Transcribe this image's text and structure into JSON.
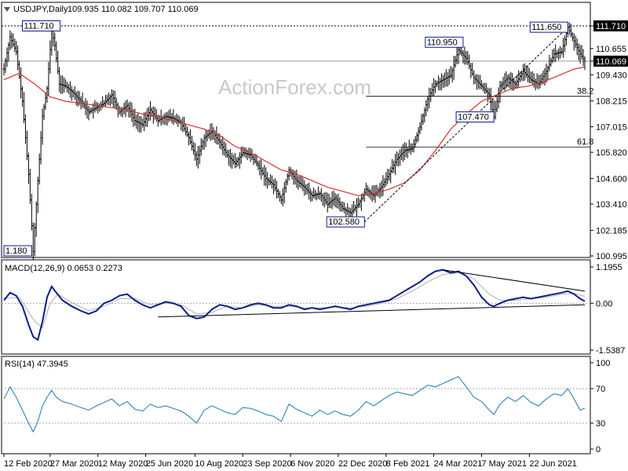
{
  "header": {
    "symbol": "USDJPY,Daily",
    "ohlc": "109.935 110.082 109.707 110.069"
  },
  "watermark": "ActionForex.com",
  "colors": {
    "price_bars": "#000000",
    "moving_average": "#d32f2f",
    "macd_line": "#0b1e8a",
    "macd_signal": "#b0b0b0",
    "rsi_line": "#1f77b4",
    "annotation_box": "#0b1e8a"
  },
  "chart_data": [
    {
      "type": "ohlc",
      "panel": "price",
      "price_axis_labels": [
        "111.710",
        "110.655",
        "110.069",
        "109.430",
        "108.215",
        "107.015",
        "105.820",
        "104.600",
        "103.410",
        "102.185",
        "100.995"
      ],
      "ylim": [
        100.995,
        111.71
      ],
      "current_price": "110.069",
      "x_labels": [
        "12 Feb 2020",
        "27 Mar 2020",
        "12 May 2020",
        "25 Jun 2020",
        "10 Aug 2020",
        "23 Sep 2020",
        "6 Nov 2020",
        "22 Dec 2020",
        "8 Feb 2021",
        "24 Mar 2021",
        "7 May 2021",
        "22 Jun 2021"
      ],
      "annotations": [
        {
          "label": "111.710"
        },
        {
          "label": "110.950"
        },
        {
          "label": "111.650"
        },
        {
          "label": "107.470"
        },
        {
          "label": "102.580"
        },
        {
          "label": "1.180"
        }
      ],
      "fibonacci": [
        {
          "label": "38.2",
          "value": 108.43
        },
        {
          "label": "61.8",
          "value": 106.07
        }
      ],
      "resistance_level": 111.71,
      "close_path": [
        [
          0,
          109.7
        ],
        [
          4,
          111.2
        ],
        [
          8,
          110.5
        ],
        [
          12,
          108.2
        ],
        [
          16,
          104.8
        ],
        [
          19,
          101.2
        ],
        [
          22,
          104.5
        ],
        [
          25,
          107.5
        ],
        [
          28,
          108.8
        ],
        [
          31,
          111.5
        ],
        [
          33,
          110.8
        ],
        [
          36,
          109.0
        ],
        [
          40,
          108.9
        ],
        [
          45,
          108.6
        ],
        [
          50,
          108.2
        ],
        [
          55,
          107.7
        ],
        [
          60,
          107.9
        ],
        [
          65,
          108.1
        ],
        [
          70,
          108.5
        ],
        [
          75,
          107.7
        ],
        [
          80,
          108.0
        ],
        [
          85,
          107.3
        ],
        [
          90,
          107.1
        ],
        [
          95,
          107.8
        ],
        [
          100,
          107.3
        ],
        [
          105,
          107.5
        ],
        [
          110,
          107.4
        ],
        [
          115,
          107.2
        ],
        [
          120,
          106.5
        ],
        [
          125,
          105.5
        ],
        [
          130,
          106.5
        ],
        [
          135,
          106.8
        ],
        [
          140,
          106.3
        ],
        [
          145,
          105.7
        ],
        [
          150,
          105.3
        ],
        [
          155,
          105.8
        ],
        [
          160,
          105.7
        ],
        [
          165,
          105.2
        ],
        [
          170,
          104.6
        ],
        [
          175,
          104.3
        ],
        [
          180,
          103.6
        ],
        [
          185,
          105.0
        ],
        [
          190,
          104.5
        ],
        [
          195,
          104.2
        ],
        [
          200,
          103.8
        ],
        [
          205,
          103.9
        ],
        [
          210,
          103.4
        ],
        [
          215,
          103.7
        ],
        [
          220,
          103.2
        ],
        [
          225,
          103.0
        ],
        [
          230,
          103.4
        ],
        [
          235,
          104.1
        ],
        [
          240,
          103.8
        ],
        [
          245,
          104.2
        ],
        [
          250,
          104.8
        ],
        [
          255,
          105.5
        ],
        [
          260,
          105.9
        ],
        [
          265,
          106.0
        ],
        [
          270,
          107.0
        ],
        [
          275,
          108.3
        ],
        [
          280,
          109.0
        ],
        [
          285,
          109.2
        ],
        [
          290,
          109.4
        ],
        [
          295,
          110.6
        ],
        [
          300,
          110.2
        ],
        [
          305,
          109.3
        ],
        [
          310,
          108.9
        ],
        [
          315,
          108.5
        ],
        [
          318,
          107.47
        ],
        [
          322,
          108.9
        ],
        [
          327,
          109.3
        ],
        [
          332,
          109.0
        ],
        [
          337,
          109.6
        ],
        [
          342,
          109.2
        ],
        [
          347,
          109.0
        ],
        [
          352,
          109.6
        ],
        [
          357,
          110.4
        ],
        [
          362,
          110.5
        ],
        [
          366,
          111.65
        ],
        [
          370,
          111.0
        ],
        [
          374,
          110.4
        ],
        [
          377,
          110.069
        ]
      ],
      "moving_average_path": [
        [
          0,
          109.2
        ],
        [
          10,
          109.5
        ],
        [
          20,
          109.0
        ],
        [
          30,
          108.4
        ],
        [
          40,
          108.2
        ],
        [
          50,
          108.1
        ],
        [
          60,
          108.0
        ],
        [
          70,
          107.9
        ],
        [
          80,
          107.8
        ],
        [
          90,
          107.6
        ],
        [
          100,
          107.5
        ],
        [
          110,
          107.3
        ],
        [
          120,
          107.1
        ],
        [
          130,
          106.9
        ],
        [
          140,
          106.6
        ],
        [
          150,
          106.1
        ],
        [
          160,
          105.8
        ],
        [
          170,
          105.4
        ],
        [
          180,
          105.0
        ],
        [
          190,
          104.8
        ],
        [
          200,
          104.5
        ],
        [
          210,
          104.2
        ],
        [
          220,
          104.0
        ],
        [
          230,
          103.8
        ],
        [
          240,
          103.9
        ],
        [
          250,
          104.1
        ],
        [
          260,
          104.4
        ],
        [
          270,
          105.0
        ],
        [
          280,
          105.9
        ],
        [
          290,
          106.9
        ],
        [
          300,
          107.6
        ],
        [
          310,
          108.2
        ],
        [
          320,
          108.5
        ],
        [
          330,
          108.8
        ],
        [
          340,
          108.9
        ],
        [
          350,
          109.1
        ],
        [
          360,
          109.4
        ],
        [
          370,
          109.7
        ],
        [
          377,
          109.8
        ]
      ],
      "trendline_up": [
        [
          234,
          102.58
        ],
        [
          366,
          111.65
        ]
      ]
    },
    {
      "type": "line",
      "panel": "macd",
      "title": "MACD(12,26,9) 0.0653 0.2273",
      "axis_labels": [
        "1.1955",
        "0.00",
        "-1.5387"
      ],
      "ylim": [
        -1.5387,
        1.1955
      ],
      "macd_path": [
        [
          0,
          0.1
        ],
        [
          4,
          0.35
        ],
        [
          8,
          0.25
        ],
        [
          12,
          -0.1
        ],
        [
          16,
          -0.7
        ],
        [
          19,
          -1.1
        ],
        [
          22,
          -1.2
        ],
        [
          25,
          -0.6
        ],
        [
          28,
          0.2
        ],
        [
          31,
          0.55
        ],
        [
          34,
          0.35
        ],
        [
          38,
          0.1
        ],
        [
          44,
          -0.1
        ],
        [
          50,
          -0.25
        ],
        [
          55,
          -0.35
        ],
        [
          60,
          -0.25
        ],
        [
          65,
          0.0
        ],
        [
          70,
          0.1
        ],
        [
          75,
          0.25
        ],
        [
          80,
          0.3
        ],
        [
          85,
          0.1
        ],
        [
          90,
          -0.05
        ],
        [
          95,
          -0.15
        ],
        [
          100,
          -0.05
        ],
        [
          105,
          0.05
        ],
        [
          110,
          0.0
        ],
        [
          115,
          -0.1
        ],
        [
          120,
          -0.4
        ],
        [
          125,
          -0.5
        ],
        [
          130,
          -0.45
        ],
        [
          135,
          -0.2
        ],
        [
          140,
          -0.05
        ],
        [
          145,
          -0.1
        ],
        [
          150,
          -0.2
        ],
        [
          155,
          -0.15
        ],
        [
          160,
          -0.05
        ],
        [
          165,
          0.0
        ],
        [
          170,
          -0.05
        ],
        [
          175,
          -0.15
        ],
        [
          180,
          -0.15
        ],
        [
          185,
          -0.05
        ],
        [
          190,
          -0.1
        ],
        [
          195,
          -0.2
        ],
        [
          200,
          -0.15
        ],
        [
          205,
          -0.2
        ],
        [
          210,
          -0.15
        ],
        [
          215,
          -0.1
        ],
        [
          220,
          -0.15
        ],
        [
          225,
          -0.2
        ],
        [
          230,
          -0.1
        ],
        [
          235,
          -0.05
        ],
        [
          240,
          0.0
        ],
        [
          245,
          0.05
        ],
        [
          250,
          0.1
        ],
        [
          255,
          0.25
        ],
        [
          260,
          0.4
        ],
        [
          265,
          0.55
        ],
        [
          270,
          0.7
        ],
        [
          275,
          0.9
        ],
        [
          280,
          1.05
        ],
        [
          285,
          1.1
        ],
        [
          290,
          1.0
        ],
        [
          295,
          1.05
        ],
        [
          300,
          0.9
        ],
        [
          305,
          0.6
        ],
        [
          310,
          0.2
        ],
        [
          315,
          -0.05
        ],
        [
          318,
          -0.1
        ],
        [
          322,
          0.0
        ],
        [
          327,
          0.1
        ],
        [
          332,
          0.15
        ],
        [
          337,
          0.2
        ],
        [
          342,
          0.15
        ],
        [
          347,
          0.2
        ],
        [
          352,
          0.25
        ],
        [
          357,
          0.3
        ],
        [
          362,
          0.35
        ],
        [
          366,
          0.4
        ],
        [
          370,
          0.3
        ],
        [
          374,
          0.15
        ],
        [
          377,
          0.0653
        ]
      ],
      "signal_path": [
        [
          0,
          0.15
        ],
        [
          10,
          0.2
        ],
        [
          20,
          -0.6
        ],
        [
          25,
          -0.8
        ],
        [
          30,
          0.0
        ],
        [
          35,
          0.3
        ],
        [
          45,
          0.0
        ],
        [
          55,
          -0.25
        ],
        [
          65,
          -0.1
        ],
        [
          75,
          0.15
        ],
        [
          85,
          0.15
        ],
        [
          95,
          -0.05
        ],
        [
          105,
          0.0
        ],
        [
          115,
          -0.05
        ],
        [
          125,
          -0.35
        ],
        [
          135,
          -0.3
        ],
        [
          145,
          -0.1
        ],
        [
          155,
          -0.15
        ],
        [
          165,
          -0.05
        ],
        [
          175,
          -0.1
        ],
        [
          185,
          -0.1
        ],
        [
          195,
          -0.15
        ],
        [
          205,
          -0.15
        ],
        [
          215,
          -0.12
        ],
        [
          225,
          -0.15
        ],
        [
          235,
          -0.1
        ],
        [
          245,
          0.0
        ],
        [
          255,
          0.15
        ],
        [
          265,
          0.4
        ],
        [
          275,
          0.7
        ],
        [
          285,
          0.95
        ],
        [
          295,
          1.0
        ],
        [
          305,
          0.8
        ],
        [
          315,
          0.3
        ],
        [
          322,
          0.1
        ],
        [
          332,
          0.1
        ],
        [
          342,
          0.15
        ],
        [
          352,
          0.2
        ],
        [
          362,
          0.3
        ],
        [
          370,
          0.33
        ],
        [
          377,
          0.2273
        ]
      ],
      "trendlines": [
        [
          [
            100,
            -0.45
          ],
          [
            377,
            -0.05
          ]
        ],
        [
          [
            285,
            1.1
          ],
          [
            377,
            0.4
          ]
        ]
      ]
    },
    {
      "type": "line",
      "panel": "rsi",
      "title": "RSI(14) 47.3945",
      "axis_labels": [
        "100",
        "70",
        "30",
        "0"
      ],
      "ylim": [
        0,
        100
      ],
      "levels": [
        70,
        30
      ],
      "rsi_path": [
        [
          0,
          58
        ],
        [
          4,
          72
        ],
        [
          8,
          60
        ],
        [
          12,
          45
        ],
        [
          16,
          30
        ],
        [
          19,
          20
        ],
        [
          22,
          32
        ],
        [
          25,
          50
        ],
        [
          28,
          60
        ],
        [
          31,
          68
        ],
        [
          34,
          60
        ],
        [
          38,
          55
        ],
        [
          44,
          52
        ],
        [
          50,
          48
        ],
        [
          55,
          45
        ],
        [
          60,
          50
        ],
        [
          65,
          54
        ],
        [
          70,
          58
        ],
        [
          75,
          50
        ],
        [
          80,
          55
        ],
        [
          85,
          46
        ],
        [
          90,
          44
        ],
        [
          95,
          52
        ],
        [
          100,
          48
        ],
        [
          105,
          50
        ],
        [
          110,
          47
        ],
        [
          115,
          44
        ],
        [
          120,
          38
        ],
        [
          125,
          30
        ],
        [
          130,
          45
        ],
        [
          135,
          50
        ],
        [
          140,
          46
        ],
        [
          145,
          42
        ],
        [
          150,
          40
        ],
        [
          155,
          48
        ],
        [
          160,
          47
        ],
        [
          165,
          44
        ],
        [
          170,
          40
        ],
        [
          175,
          38
        ],
        [
          180,
          32
        ],
        [
          185,
          52
        ],
        [
          190,
          46
        ],
        [
          195,
          42
        ],
        [
          200,
          38
        ],
        [
          205,
          45
        ],
        [
          210,
          40
        ],
        [
          215,
          44
        ],
        [
          220,
          40
        ],
        [
          225,
          38
        ],
        [
          230,
          45
        ],
        [
          235,
          55
        ],
        [
          240,
          50
        ],
        [
          245,
          56
        ],
        [
          250,
          62
        ],
        [
          255,
          66
        ],
        [
          260,
          64
        ],
        [
          265,
          62
        ],
        [
          270,
          68
        ],
        [
          275,
          74
        ],
        [
          280,
          72
        ],
        [
          285,
          76
        ],
        [
          290,
          80
        ],
        [
          295,
          84
        ],
        [
          300,
          72
        ],
        [
          305,
          60
        ],
        [
          310,
          55
        ],
        [
          315,
          45
        ],
        [
          318,
          40
        ],
        [
          322,
          52
        ],
        [
          327,
          60
        ],
        [
          332,
          55
        ],
        [
          337,
          62
        ],
        [
          342,
          54
        ],
        [
          347,
          50
        ],
        [
          352,
          58
        ],
        [
          357,
          64
        ],
        [
          362,
          62
        ],
        [
          366,
          70
        ],
        [
          370,
          58
        ],
        [
          374,
          45
        ],
        [
          377,
          47.3945
        ]
      ]
    }
  ]
}
